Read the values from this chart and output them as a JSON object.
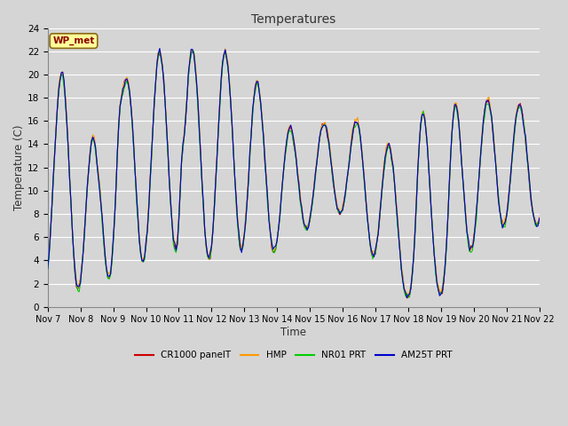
{
  "title": "Temperatures",
  "xlabel": "Time",
  "ylabel": "Temperature (C)",
  "ylim": [
    0,
    24
  ],
  "xlim": [
    0,
    360
  ],
  "background_color": "#d5d5d5",
  "plot_bg_color": "#d5d5d5",
  "grid_color": "#ffffff",
  "series": {
    "CR1000_panelT": {
      "color": "#cc0000",
      "label": "CR1000 panelT",
      "lw": 0.8
    },
    "HMP": {
      "color": "#ff9900",
      "label": "HMP",
      "lw": 0.8
    },
    "NR01_PRT": {
      "color": "#00cc00",
      "label": "NR01 PRT",
      "lw": 0.8
    },
    "AM25T_PRT": {
      "color": "#0000cc",
      "label": "AM25T PRT",
      "lw": 0.8
    }
  },
  "xtick_labels": [
    "Nov 7",
    "Nov 8",
    "Nov 9",
    "Nov 10",
    "Nov 11",
    "Nov 12",
    "Nov 13",
    "Nov 14",
    "Nov 15",
    "Nov 16",
    "Nov 17",
    "Nov 18",
    "Nov 19",
    "Nov 20",
    "Nov 21",
    "Nov 22"
  ],
  "xtick_positions": [
    0,
    24,
    48,
    72,
    96,
    120,
    144,
    168,
    192,
    216,
    240,
    264,
    288,
    312,
    336,
    360
  ],
  "wp_met_label": "WP_met",
  "wp_met_color": "#8b0000",
  "wp_met_bg": "#ffff99",
  "wp_met_edge": "#8b6914"
}
